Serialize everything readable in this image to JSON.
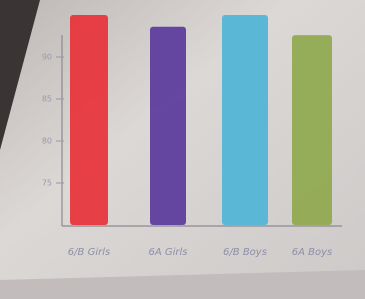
{
  "chart_data": {
    "type": "bar",
    "categories": [
      "6/B Girls",
      "6A Girls",
      "6/B Boys",
      "6A Boys"
    ],
    "values": [
      95,
      93.6,
      95,
      92.6
    ],
    "colors": [
      "#e8323a",
      "#5a3a9c",
      "#4fb4d6",
      "#8fa84e"
    ],
    "ylim": [
      70,
      95
    ],
    "yticks": [
      75,
      80,
      85,
      90
    ],
    "grid": false
  }
}
